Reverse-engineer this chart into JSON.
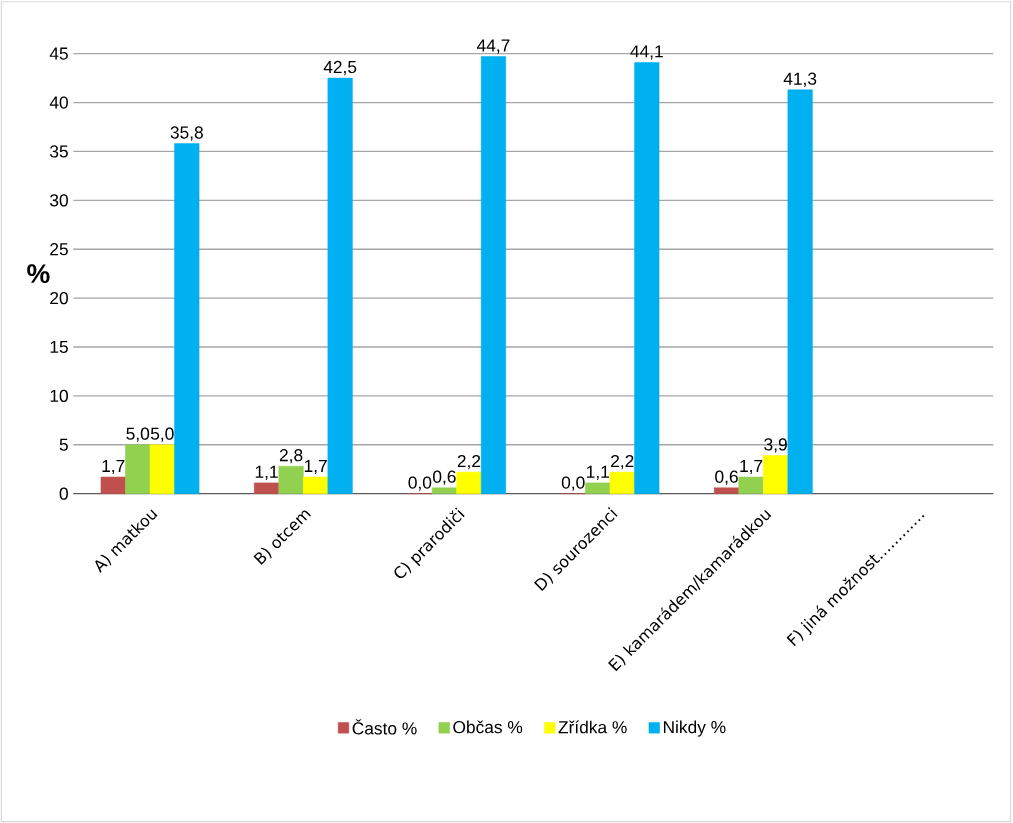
{
  "chart_data": {
    "type": "bar",
    "ylabel": "%",
    "categories": [
      "A) matkou",
      "B) otcem",
      "C) prarodiči",
      "D) sourozenci",
      "E) kamarádem/kamarádkou",
      "F) jiná možnost…………"
    ],
    "series": [
      {
        "name": "Často  %",
        "color": "#c0504d",
        "values": [
          1.7,
          1.1,
          0.0,
          0.0,
          0.6,
          null
        ],
        "value_labels": [
          "1,7",
          "1,1",
          "0,0",
          "0,0",
          "0,6",
          null
        ]
      },
      {
        "name": "Občas  %",
        "color": "#92d050",
        "values": [
          5.0,
          2.8,
          0.6,
          1.1,
          1.7,
          null
        ],
        "value_labels": [
          "5,0",
          "2,8",
          "0,6",
          "1,1",
          "1,7",
          null
        ]
      },
      {
        "name": "Zřídka  %",
        "color": "#ffff00",
        "values": [
          5.0,
          1.7,
          2.2,
          2.2,
          3.9,
          null
        ],
        "value_labels": [
          "5,0",
          "1,7",
          "2,2",
          "2,2",
          "3,9",
          null
        ]
      },
      {
        "name": "Nikdy  %",
        "color": "#00b0f0",
        "values": [
          35.8,
          42.5,
          44.7,
          44.1,
          41.3,
          null
        ],
        "value_labels": [
          "35,8",
          "42,5",
          "44,7",
          "44,1",
          "41,3",
          null
        ]
      }
    ],
    "ylim": [
      0,
      45
    ],
    "yticks": [
      0,
      5,
      10,
      15,
      20,
      25,
      30,
      35,
      40,
      45
    ],
    "grid": "y",
    "legend": "bottom"
  }
}
